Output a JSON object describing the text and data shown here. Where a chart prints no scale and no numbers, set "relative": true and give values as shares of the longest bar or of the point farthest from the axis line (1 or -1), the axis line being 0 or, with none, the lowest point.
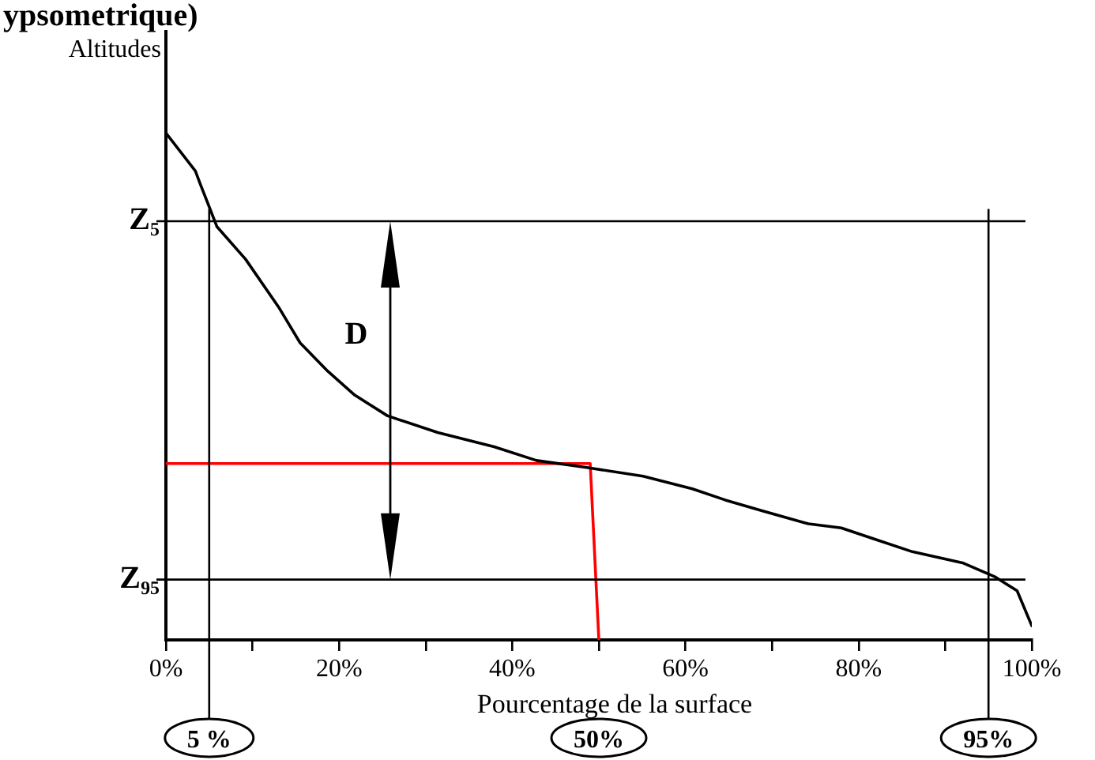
{
  "chart_data": {
    "type": "line",
    "title": "ypsometrique)",
    "xlabel": "Pourcentage de la surface",
    "ylabel": "Altitudes",
    "relative": true,
    "tick_labels": "x",
    "grid": false,
    "legend": false,
    "marker": "none",
    "xlim": [
      0,
      100
    ],
    "xticks": [
      {
        "value": 0,
        "label": "0%"
      },
      {
        "value": 10,
        "label": null
      },
      {
        "value": 20,
        "label": "20%"
      },
      {
        "value": 30,
        "label": null
      },
      {
        "value": 40,
        "label": "40%"
      },
      {
        "value": 50,
        "label": null
      },
      {
        "value": 60,
        "label": "60%"
      },
      {
        "value": 70,
        "label": null
      },
      {
        "value": 80,
        "label": "80%"
      },
      {
        "value": 90,
        "label": null
      },
      {
        "value": 100,
        "label": "100%"
      }
    ],
    "series": [
      {
        "color": "#000000",
        "x": [
          0,
          3.4,
          4,
          5.9,
          9.2,
          13,
          15.5,
          18.7,
          21.8,
          25.6,
          31.4,
          37.9,
          42.8,
          48.6,
          55.1,
          60.8,
          64.6,
          69,
          74.2,
          78,
          81.8,
          86.2,
          92,
          95.8,
          98.3,
          100
        ],
        "values": [
          1,
          0.925,
          0.898,
          0.815,
          0.751,
          0.657,
          0.586,
          0.53,
          0.483,
          0.442,
          0.409,
          0.381,
          0.354,
          0.34,
          0.323,
          0.298,
          0.276,
          0.254,
          0.229,
          0.221,
          0.199,
          0.174,
          0.152,
          0.124,
          0.097,
          0.028
        ]
      },
      {
        "type": "line",
        "color": "#ff0000",
        "x": [
          0,
          49,
          50
        ],
        "values": [
          0.348,
          0.348,
          0
        ]
      }
    ],
    "ref_lines": [
      {
        "axis": "y",
        "value": 0.826,
        "label": "Z₅",
        "color": "#000000"
      },
      {
        "axis": "y",
        "value": 0.119,
        "label": "Z₉₅",
        "color": "#000000"
      },
      {
        "axis": "x",
        "value": 5,
        "label": "5 %",
        "color": "#000000"
      },
      {
        "axis": "x",
        "value": 95,
        "label": "95%",
        "color": "#000000"
      }
    ],
    "annotations": [
      "D",
      "50%"
    ]
  }
}
